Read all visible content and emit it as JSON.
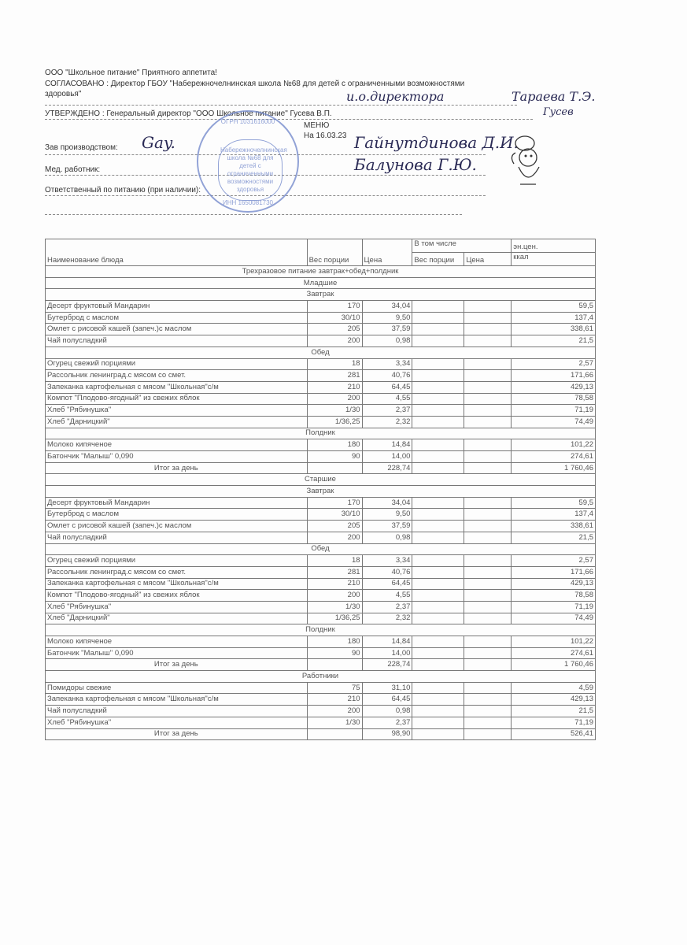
{
  "header": {
    "company": "ООО \"Школьное питание\" Приятного аппетита!",
    "agreed": "СОГЛАСОВАНО : Директор ГБОУ \"Набережночелнинская школа №68 для детей с ограниченными возможностями",
    "agreed_cont": "здоровья\"",
    "approved": "УТВЕРЖДЕНО : Генеральный директор \"ООО Школьное питание\" Гусева В.П.",
    "menu_title": "МЕНЮ",
    "menu_date": "На 16.03.23",
    "production_head_label": "Зав производством:",
    "medic_label": "Мед. работник:",
    "responsible_label": "Ответственный по питанию (при наличии):"
  },
  "signatures": {
    "agreed_sig1": "и.о.директора",
    "agreed_sig2": "Тараева Т.Э.",
    "approved_sig": "Гусев",
    "production_sig": "Гайнутдинова Д.И.",
    "medic_sig": "Балунова Г.Ю."
  },
  "stamp": {
    "ogrn": "ОГРН 1031616000",
    "text": "Набережночелнинская школа №68 для детей с ограниченными возможностями здоровья",
    "inn": "ИНН 1650081730"
  },
  "table": {
    "columns": {
      "name": "Наименование блюда",
      "weight": "Вес порции",
      "price": "Цена",
      "including": "В том числе",
      "inc_weight": "Вес порции",
      "inc_price": "Цена",
      "energy": "эн.цен.",
      "energy_unit": "ккал"
    },
    "rows": [
      {
        "type": "section",
        "label": "Трехразовое питание завтрак+обед+полдник"
      },
      {
        "type": "section",
        "label": "Младшие"
      },
      {
        "type": "section",
        "label": "Завтрак"
      },
      {
        "type": "item",
        "name": "Десерт фруктовый Мандарин",
        "weight": "170",
        "price": "34,04",
        "kcal": "59,5"
      },
      {
        "type": "item",
        "name": "Бутерброд с маслом",
        "weight": "30/10",
        "price": "9,50",
        "kcal": "137,4"
      },
      {
        "type": "item",
        "name": "Омлет с рисовой кашей (запеч.)с маслом",
        "weight": "205",
        "price": "37,59",
        "kcal": "338,61"
      },
      {
        "type": "item",
        "name": "Чай полусладкий",
        "weight": "200",
        "price": "0,98",
        "kcal": "21,5"
      },
      {
        "type": "section",
        "label": "Обед"
      },
      {
        "type": "item",
        "name": "Огурец свежий порциями",
        "weight": "18",
        "price": "3,34",
        "kcal": "2,57"
      },
      {
        "type": "item",
        "name": "Рассольник ленинград.с мясом со смет.",
        "weight": "281",
        "price": "40,76",
        "kcal": "171,66"
      },
      {
        "type": "item",
        "name": "Запеканка картофельная с мясом \"Школьная\"с/м",
        "weight": "210",
        "price": "64,45",
        "kcal": "429,13"
      },
      {
        "type": "item",
        "name": "Компот \"Плодово-ягодный\" из свежих яблок",
        "weight": "200",
        "price": "4,55",
        "kcal": "78,58"
      },
      {
        "type": "item",
        "name": "Хлеб \"Рябинушка\"",
        "weight": "1/30",
        "price": "2,37",
        "kcal": "71,19"
      },
      {
        "type": "item",
        "name": "Хлеб \"Дарницкий\"",
        "weight": "1/36,25",
        "price": "2,32",
        "kcal": "74,49"
      },
      {
        "type": "section",
        "label": "Полдник"
      },
      {
        "type": "item",
        "name": "Молоко кипяченое",
        "weight": "180",
        "price": "14,84",
        "kcal": "101,22"
      },
      {
        "type": "item",
        "name": "Батончик \"Малыш\" 0,090",
        "weight": "90",
        "price": "14,00",
        "kcal": "274,61"
      },
      {
        "type": "total",
        "name": "Итог за день",
        "weight": "",
        "price": "228,74",
        "kcal": "1 760,46"
      },
      {
        "type": "section",
        "label": "Старшие"
      },
      {
        "type": "section",
        "label": "Завтрак"
      },
      {
        "type": "item",
        "name": "Десерт фруктовый Мандарин",
        "weight": "170",
        "price": "34,04",
        "kcal": "59,5"
      },
      {
        "type": "item",
        "name": "Бутерброд с маслом",
        "weight": "30/10",
        "price": "9,50",
        "kcal": "137,4"
      },
      {
        "type": "item",
        "name": "Омлет с рисовой кашей (запеч.)с маслом",
        "weight": "205",
        "price": "37,59",
        "kcal": "338,61"
      },
      {
        "type": "item",
        "name": "Чай полусладкий",
        "weight": "200",
        "price": "0,98",
        "kcal": "21,5"
      },
      {
        "type": "section",
        "label": "Обед"
      },
      {
        "type": "item",
        "name": "Огурец свежий порциями",
        "weight": "18",
        "price": "3,34",
        "kcal": "2,57"
      },
      {
        "type": "item",
        "name": "Рассольник ленинград.с мясом со смет.",
        "weight": "281",
        "price": "40,76",
        "kcal": "171,66"
      },
      {
        "type": "item",
        "name": "Запеканка картофельная с мясом \"Школьная\"с/м",
        "weight": "210",
        "price": "64,45",
        "kcal": "429,13"
      },
      {
        "type": "item",
        "name": "Компот \"Плодово-ягодный\" из свежих яблок",
        "weight": "200",
        "price": "4,55",
        "kcal": "78,58"
      },
      {
        "type": "item",
        "name": "Хлеб \"Рябинушка\"",
        "weight": "1/30",
        "price": "2,37",
        "kcal": "71,19"
      },
      {
        "type": "item",
        "name": "Хлеб \"Дарницкий\"",
        "weight": "1/36,25",
        "price": "2,32",
        "kcal": "74,49"
      },
      {
        "type": "section",
        "label": "Полдник"
      },
      {
        "type": "item",
        "name": "Молоко кипяченое",
        "weight": "180",
        "price": "14,84",
        "kcal": "101,22"
      },
      {
        "type": "item",
        "name": "Батончик \"Малыш\" 0,090",
        "weight": "90",
        "price": "14,00",
        "kcal": "274,61"
      },
      {
        "type": "total",
        "name": "Итог за день",
        "weight": "",
        "price": "228,74",
        "kcal": "1 760,46"
      },
      {
        "type": "section",
        "label": "Работники"
      },
      {
        "type": "item",
        "name": "Помидоры свежие",
        "weight": "75",
        "price": "31,10",
        "kcal": "4,59"
      },
      {
        "type": "item",
        "name": "Запеканка картофельная с мясом \"Школьная\"с/м",
        "weight": "210",
        "price": "64,45",
        "kcal": "429,13"
      },
      {
        "type": "item",
        "name": "Чай полусладкий",
        "weight": "200",
        "price": "0,98",
        "kcal": "21,5"
      },
      {
        "type": "item",
        "name": "Хлеб \"Рябинушка\"",
        "weight": "1/30",
        "price": "2,37",
        "kcal": "71,19"
      },
      {
        "type": "total",
        "name": "Итог за день",
        "weight": "",
        "price": "98,90",
        "kcal": "526,41"
      }
    ]
  }
}
